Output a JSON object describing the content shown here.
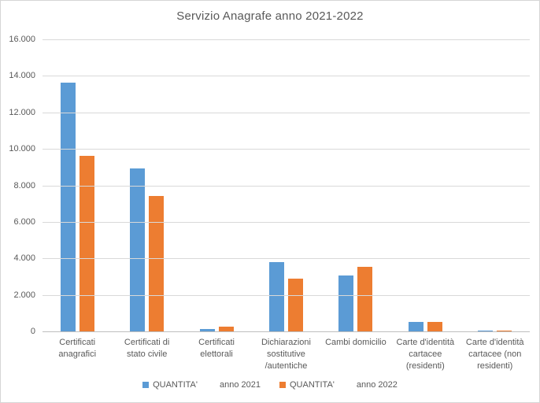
{
  "chart_data": {
    "type": "bar",
    "title": "Servizio Anagrafe anno 2021-2022",
    "categories": [
      "Certificati anagrafici",
      "Certificati di stato civile",
      "Certificati elettorali",
      "Dichiarazioni sostitutive /autentiche",
      "Cambi domicilio",
      "Carte d'identità cartacee (residenti)",
      "Carte d'identità cartacee (non residenti)"
    ],
    "category_label_lines": [
      [
        "Certificati",
        "anagrafici"
      ],
      [
        "Certificati di",
        "stato civile"
      ],
      [
        "Certificati",
        "elettorali"
      ],
      [
        "Dichiarazioni",
        "sostitutive",
        "/autentiche"
      ],
      [
        "Cambi domicilio"
      ],
      [
        "Carte d'identità",
        "cartacee",
        "(residenti)"
      ],
      [
        "Carte d'identità",
        "cartacee (non",
        "residenti)"
      ]
    ],
    "series": [
      {
        "name": "QUANTITA'",
        "period": "anno 2021",
        "color": "#5B9BD5",
        "values": [
          13650,
          8950,
          150,
          3800,
          3050,
          500,
          60
        ]
      },
      {
        "name": "QUANTITA'",
        "period": "anno 2022",
        "color": "#ED7D31",
        "values": [
          9600,
          7400,
          250,
          2900,
          3550,
          500,
          40
        ]
      }
    ],
    "xlabel": "",
    "ylabel": "",
    "ylim": [
      0,
      16000
    ],
    "ytick_interval": 2000,
    "ytick_labels": [
      "16.000",
      "14.000",
      "12.000",
      "10.000",
      "8.000",
      "6.000",
      "4.000",
      "2.000",
      "0"
    ],
    "grid": true,
    "legend_position": "bottom"
  },
  "style": {
    "background": "#FFFFFF",
    "border_color": "#D6D6D6",
    "gridline_color": "#D9D9D9",
    "zero_line_color": "#BFBFBF",
    "text_color": "#595959",
    "series_colors": {
      "anno_2021": "#5B9BD5",
      "anno_2022": "#ED7D31"
    }
  }
}
